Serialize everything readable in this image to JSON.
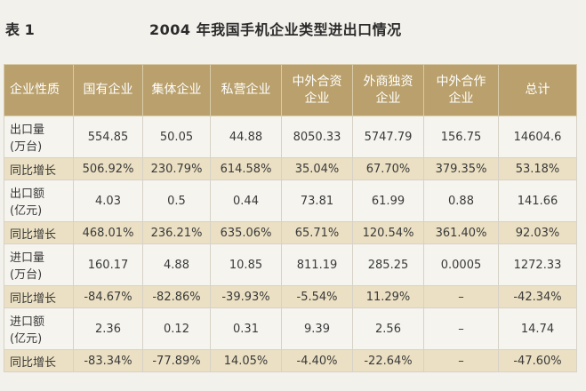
{
  "header": {
    "table_label": "表 1",
    "title": "2004 年我国手机企业类型进出口情况"
  },
  "table": {
    "columns": [
      {
        "line1": "企业性质",
        "line2": ""
      },
      {
        "line1": "国有企业",
        "line2": ""
      },
      {
        "line1": "集体企业",
        "line2": ""
      },
      {
        "line1": "私营企业",
        "line2": ""
      },
      {
        "line1": "中外合资",
        "line2": "企业"
      },
      {
        "line1": "外商独资",
        "line2": "企业"
      },
      {
        "line1": "中外合作",
        "line2": "企业"
      },
      {
        "line1": "总计",
        "line2": ""
      }
    ],
    "rows": [
      {
        "label": [
          "出口量",
          "(万台)"
        ],
        "cells": [
          "554.85",
          "50.05",
          "44.88",
          "8050.33",
          "5747.79",
          "156.75",
          "14604.6"
        ]
      },
      {
        "label": [
          "同比增长"
        ],
        "cells": [
          "506.92%",
          "230.79%",
          "614.58%",
          "35.04%",
          "67.70%",
          "379.35%",
          "53.18%"
        ]
      },
      {
        "label": [
          "出口额",
          "(亿元)"
        ],
        "cells": [
          "4.03",
          "0.5",
          "0.44",
          "73.81",
          "61.99",
          "0.88",
          "141.66"
        ]
      },
      {
        "label": [
          "同比增长"
        ],
        "cells": [
          "468.01%",
          "236.21%",
          "635.06%",
          "65.71%",
          "120.54%",
          "361.40%",
          "92.03%"
        ]
      },
      {
        "label": [
          "进口量",
          "(万台)"
        ],
        "cells": [
          "160.17",
          "4.88",
          "10.85",
          "811.19",
          "285.25",
          "0.0005",
          "1272.33"
        ]
      },
      {
        "label": [
          "同比增长"
        ],
        "cells": [
          "-84.67%",
          "-82.86%",
          "-39.93%",
          "-5.54%",
          "11.29%",
          "–",
          "-42.34%"
        ]
      },
      {
        "label": [
          "进口额",
          "(亿元)"
        ],
        "cells": [
          "2.36",
          "0.12",
          "0.31",
          "9.39",
          "2.56",
          "–",
          "14.74"
        ]
      },
      {
        "label": [
          "同比增长"
        ],
        "cells": [
          "-83.34%",
          "-77.89%",
          "14.05%",
          "-4.40%",
          "-22.64%",
          "–",
          "-47.60%"
        ]
      }
    ]
  }
}
